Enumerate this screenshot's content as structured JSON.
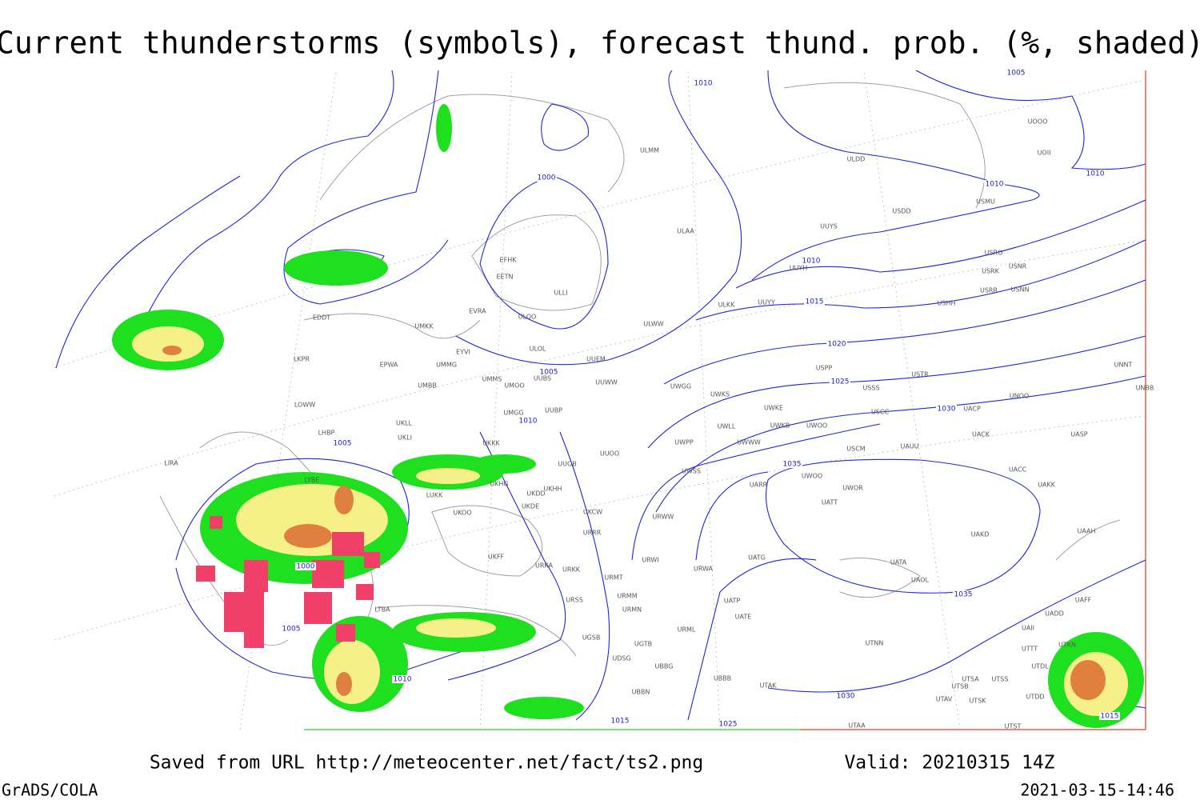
{
  "title": "Current thunderstorms (symbols), forecast thund. prob. (%, shaded)",
  "footer": {
    "source": "Saved from URL http://meteocenter.net/fact/ts2.png",
    "valid": "Valid: 20210315 14Z",
    "credit": "GrADS/COLA",
    "timestamp": "2021-03-15-14:46"
  },
  "isobar_labels": [
    1010,
    1005,
    1000,
    1010,
    1010,
    1010,
    1015,
    1005,
    1020,
    1025,
    1010,
    1030,
    1005,
    1035,
    1000,
    1005,
    1035,
    1010,
    1030,
    1015,
    1025,
    1015
  ],
  "stations": [
    "UOOO",
    "UOII",
    "ULDD",
    "ULMM",
    "USMU",
    "USDD",
    "UUYS",
    "ULAA",
    "USRO",
    "UUYH",
    "USRK",
    "USNR",
    "USRR",
    "USNN",
    "USHH",
    "ULKK",
    "UUYY",
    "ULWW",
    "EFHK",
    "EETN",
    "ULLI",
    "EVRA",
    "ULOO",
    "EDDT",
    "UMKK",
    "ULOL",
    "UUEM",
    "EYVI",
    "LKPR",
    "EPWA",
    "UMMG",
    "UMMS",
    "UMOO",
    "UUBS",
    "UUWW",
    "USPP",
    "USTR",
    "UNNT",
    "UMBB",
    "UWGG",
    "UWKS",
    "USSS",
    "UNOO",
    "UNBB",
    "LOWW",
    "UWKE",
    "USCC",
    "UACP",
    "UMGG",
    "UUBP",
    "UKLL",
    "UWLL",
    "UWKB",
    "UWOO",
    "UKLI",
    "LHBP",
    "UACK",
    "UASP",
    "UKKK",
    "UWPP",
    "UWWW",
    "USCM",
    "UAUU",
    "UUOO",
    "UUOB",
    "LYBE",
    "UKHG",
    "UKDD",
    "UKHH",
    "UWSS",
    "UWOO",
    "UARR",
    "UWOR",
    "UACC",
    "UAKK",
    "LIRA",
    "LUKK",
    "UKOO",
    "UKDE",
    "UKCW",
    "URWW",
    "UATT",
    "UAKD",
    "UAAH",
    "URRR",
    "UKFF",
    "URKA",
    "URKK",
    "URWI",
    "URWA",
    "UATG",
    "UATA",
    "UAOL",
    "URMT",
    "URMM",
    "URSS",
    "URMN",
    "UATP",
    "UATE",
    "UAFF",
    "UADD",
    "LTBA",
    "UGSB",
    "URML",
    "UAII",
    "UTKN",
    "UGTB",
    "UTNN",
    "UTTT",
    "UDSG",
    "UBBG",
    "UTDL",
    "UTSA",
    "UTSS",
    "UTSB",
    "UBBB",
    "UTAK",
    "UBBN",
    "UTDD",
    "UTAV",
    "UTSK",
    "UTAA",
    "UTST"
  ]
}
